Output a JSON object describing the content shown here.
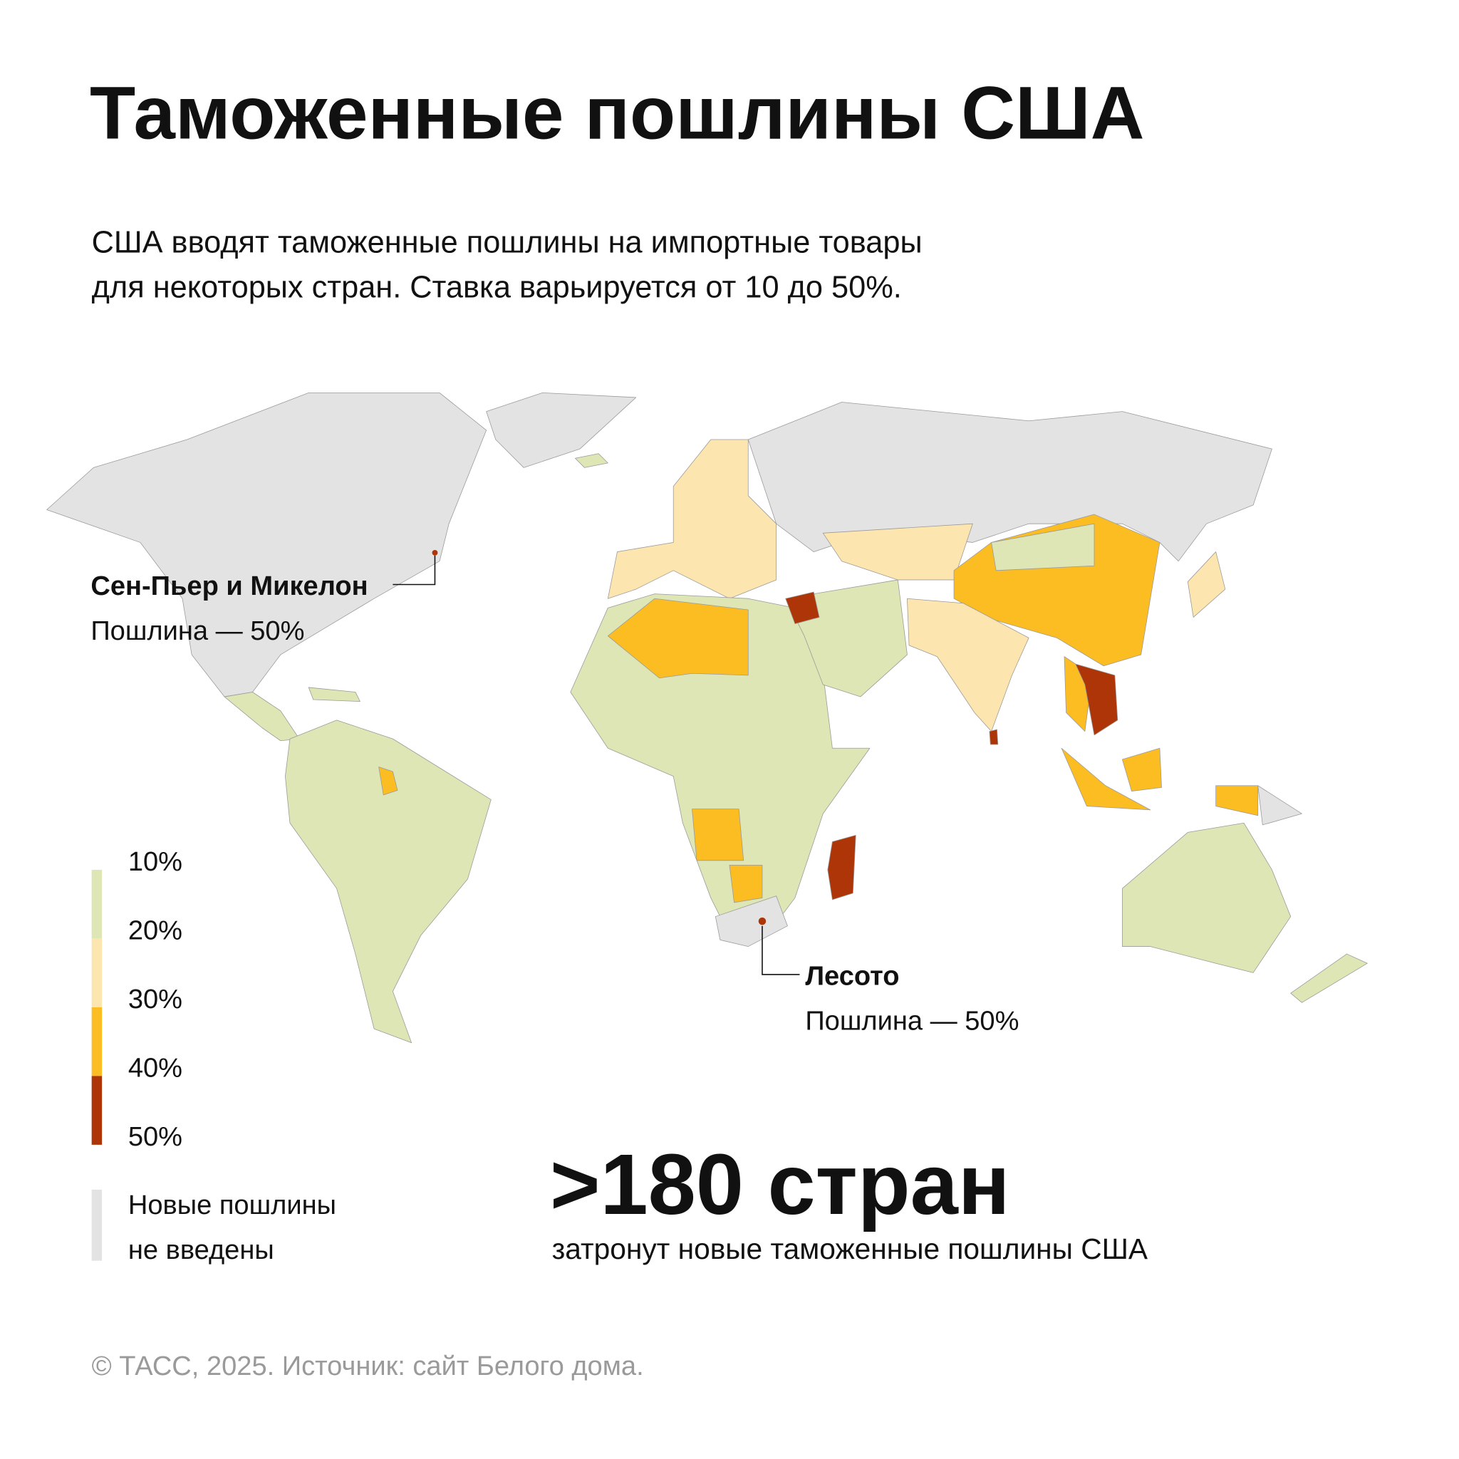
{
  "title": "Таможенные пошлины США",
  "subtitle": [
    "США вводят таможенные пошлины на импортные товары",
    "для некоторых стран. Ставка варьируется от 10 до 50%."
  ],
  "legend": {
    "ticks": [
      "10%",
      "20%",
      "30%",
      "40%",
      "50%"
    ],
    "colors": [
      "#dde6b4",
      "#fde5b0",
      "#fbbd22",
      "#ad3508"
    ],
    "no_tariff": {
      "lines": [
        "Новые пошлины",
        "не введены"
      ],
      "color": "#e3e3e3"
    }
  },
  "annotations": [
    {
      "name": "Сен-Пьер и Микелон",
      "text": "Пошлина — 50%"
    },
    {
      "name": "Лесото",
      "text": "Пошлина — 50%"
    }
  ],
  "highlight": {
    "value": ">180 стран",
    "caption": "затронут новые таможенные пошлины США"
  },
  "source": "© ТАСС, 2025. Источник: сайт Белого дома."
}
